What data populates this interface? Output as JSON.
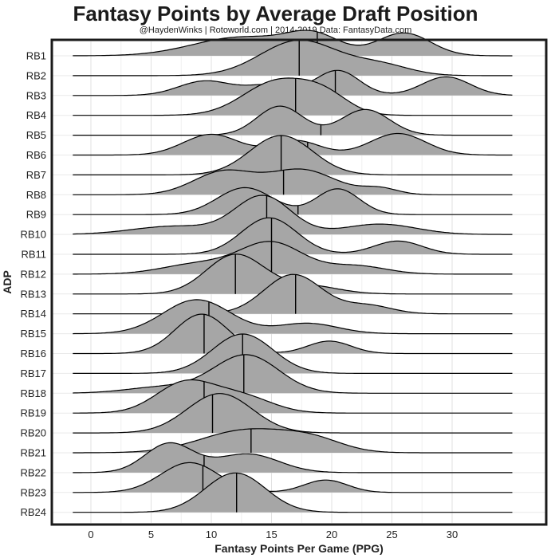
{
  "chart_data": {
    "type": "ridgeline",
    "title": "Fantasy Points by Average Draft Position",
    "subtitle": "@HaydenWinks | Rotoworld.com | 2014-2019 Data: FantasyData.com",
    "xlabel": "Fantasy Points Per Game (PPG)",
    "ylabel": "ADP",
    "xlim": [
      -1.5,
      35.0
    ],
    "x_ticks": [
      0,
      5,
      10,
      15,
      20,
      25,
      30
    ],
    "grid": true,
    "fill_color": "#a6a6a6",
    "line_color": "#000000",
    "series": [
      {
        "name": "RB1",
        "median": 18.8,
        "peaks": [
          [
            12.5,
            4.0,
            0.45
          ],
          [
            18.5,
            2.2,
            0.45
          ],
          [
            26.0,
            2.2,
            0.55
          ]
        ]
      },
      {
        "name": "RB2",
        "median": 17.3,
        "peaks": [
          [
            17.3,
            3.2,
            0.85
          ],
          [
            24.0,
            2.5,
            0.25
          ]
        ]
      },
      {
        "name": "RB3",
        "median": 20.3,
        "peaks": [
          [
            9.5,
            2.2,
            0.35
          ],
          [
            15.0,
            2.0,
            0.25
          ],
          [
            20.5,
            1.8,
            0.6
          ],
          [
            29.5,
            2.0,
            0.45
          ]
        ]
      },
      {
        "name": "RB4",
        "median": 17.0,
        "peaks": [
          [
            15.5,
            2.8,
            0.82
          ],
          [
            19.5,
            2.0,
            0.4
          ]
        ]
      },
      {
        "name": "RB5",
        "median": 19.1,
        "peaks": [
          [
            15.7,
            1.9,
            0.7
          ],
          [
            22.8,
            2.0,
            0.62
          ]
        ]
      },
      {
        "name": "RB6",
        "median": 18.0,
        "peaks": [
          [
            10.0,
            2.3,
            0.5
          ],
          [
            17.0,
            2.0,
            0.35
          ],
          [
            25.5,
            2.3,
            0.52
          ]
        ]
      },
      {
        "name": "RB7",
        "median": 15.8,
        "peaks": [
          [
            15.8,
            2.6,
            0.95
          ]
        ]
      },
      {
        "name": "RB8",
        "median": 16.0,
        "peaks": [
          [
            11.0,
            2.5,
            0.55
          ],
          [
            17.5,
            2.8,
            0.6
          ],
          [
            24.0,
            1.5,
            0.15
          ]
        ]
      },
      {
        "name": "RB9",
        "median": 17.2,
        "peaks": [
          [
            12.8,
            2.3,
            0.65
          ],
          [
            20.5,
            1.8,
            0.62
          ]
        ]
      },
      {
        "name": "RB10",
        "median": 14.6,
        "peaks": [
          [
            7.0,
            3.5,
            0.2
          ],
          [
            14.3,
            2.3,
            0.92
          ],
          [
            24.0,
            3.0,
            0.25
          ]
        ]
      },
      {
        "name": "RB11",
        "median": 15.0,
        "peaks": [
          [
            14.8,
            2.3,
            0.88
          ],
          [
            25.5,
            2.0,
            0.32
          ]
        ]
      },
      {
        "name": "RB12",
        "median": 15.0,
        "peaks": [
          [
            15.0,
            2.6,
            0.75
          ],
          [
            9.0,
            3.0,
            0.25
          ],
          [
            22.0,
            2.5,
            0.2
          ]
        ]
      },
      {
        "name": "RB13",
        "median": 12.0,
        "peaks": [
          [
            12.0,
            2.4,
            0.95
          ],
          [
            18.0,
            2.5,
            0.2
          ]
        ]
      },
      {
        "name": "RB14",
        "median": 17.0,
        "peaks": [
          [
            16.8,
            2.4,
            0.95
          ],
          [
            23.0,
            2.0,
            0.2
          ]
        ]
      },
      {
        "name": "RB15",
        "median": 9.8,
        "peaks": [
          [
            8.8,
            2.8,
            0.82
          ],
          [
            18.0,
            2.5,
            0.25
          ]
        ]
      },
      {
        "name": "RB16",
        "median": 9.4,
        "peaks": [
          [
            9.2,
            2.2,
            0.95
          ],
          [
            19.8,
            1.8,
            0.3
          ]
        ]
      },
      {
        "name": "RB17",
        "median": 12.6,
        "peaks": [
          [
            12.6,
            2.5,
            0.95
          ]
        ]
      },
      {
        "name": "RB18",
        "median": 12.7,
        "peaks": [
          [
            12.9,
            2.7,
            0.92
          ],
          [
            6.0,
            3.0,
            0.15
          ]
        ]
      },
      {
        "name": "RB19",
        "median": 9.4,
        "peaks": [
          [
            7.8,
            2.4,
            0.72
          ],
          [
            12.5,
            2.5,
            0.4
          ]
        ]
      },
      {
        "name": "RB20",
        "median": 10.1,
        "peaks": [
          [
            10.7,
            2.7,
            0.95
          ]
        ]
      },
      {
        "name": "RB21",
        "median": 13.3,
        "peaks": [
          [
            13.0,
            3.8,
            0.55
          ],
          [
            18.5,
            2.5,
            0.25
          ]
        ]
      },
      {
        "name": "RB22",
        "median": 9.4,
        "peaks": [
          [
            6.5,
            2.0,
            0.7
          ],
          [
            13.0,
            2.6,
            0.45
          ]
        ]
      },
      {
        "name": "RB23",
        "median": 9.3,
        "peaks": [
          [
            8.2,
            2.4,
            0.72
          ],
          [
            19.5,
            1.8,
            0.3
          ]
        ]
      },
      {
        "name": "RB24",
        "median": 12.1,
        "peaks": [
          [
            12.0,
            2.5,
            0.95
          ]
        ]
      }
    ]
  }
}
